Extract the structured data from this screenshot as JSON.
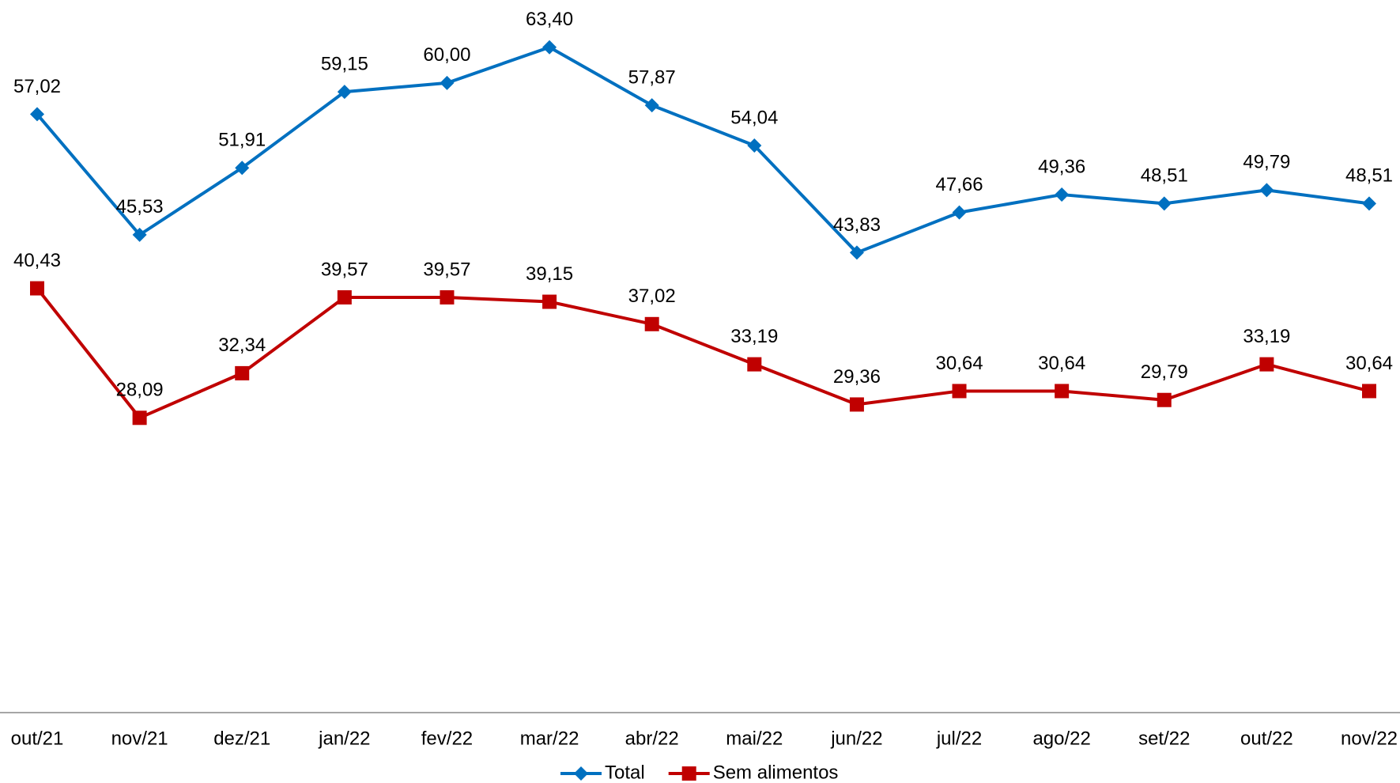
{
  "chart_data": {
    "type": "line",
    "categories": [
      "out/21",
      "nov/21",
      "dez/21",
      "jan/22",
      "fev/22",
      "mar/22",
      "abr/22",
      "mai/22",
      "jun/22",
      "jul/22",
      "ago/22",
      "set/22",
      "out/22",
      "nov/22"
    ],
    "series": [
      {
        "name": "Total",
        "color": "#0070c0",
        "marker": "diamond",
        "values": [
          57.02,
          45.53,
          51.91,
          59.15,
          60.0,
          63.4,
          57.87,
          54.04,
          43.83,
          47.66,
          49.36,
          48.51,
          49.79,
          48.51
        ],
        "value_labels": [
          "57,02",
          "45,53",
          "51,91",
          "59,15",
          "60,00",
          "63,40",
          "57,87",
          "54,04",
          "43,83",
          "47,66",
          "49,36",
          "48,51",
          "49,79",
          "48,51"
        ]
      },
      {
        "name": "Sem alimentos",
        "color": "#c00000",
        "marker": "square",
        "values": [
          40.43,
          28.09,
          32.34,
          39.57,
          39.57,
          39.15,
          37.02,
          33.19,
          29.36,
          30.64,
          30.64,
          29.79,
          33.19,
          30.64
        ],
        "value_labels": [
          "40,43",
          "28,09",
          "32,34",
          "39,57",
          "39,57",
          "39,15",
          "37,02",
          "33,19",
          "29,36",
          "30,64",
          "30,64",
          "29,79",
          "33,19",
          "30,64"
        ]
      }
    ],
    "ylim": [
      0,
      67
    ],
    "grid": false,
    "legend": "bottom"
  }
}
